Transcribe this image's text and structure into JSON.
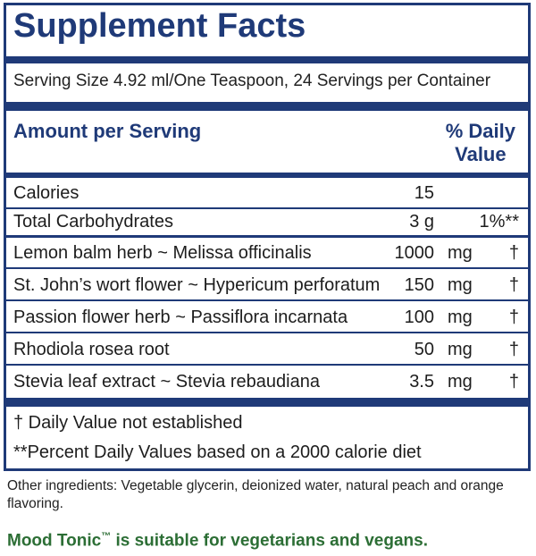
{
  "title": "Supplement Facts",
  "serving": "Serving Size 4.92 ml/One Teaspoon, 24 Servings per Container",
  "header": {
    "amount_per_serving": "Amount per Serving",
    "daily_value_line1": "% Daily",
    "daily_value_line2": "Value"
  },
  "rows": [
    {
      "name": "Calories",
      "amount": "15",
      "unit": "",
      "dv": ""
    },
    {
      "name": "Total Carbohydrates",
      "amount": "3 g",
      "unit": "",
      "dv": "1%**"
    },
    {
      "name": "Lemon balm herb ~ Melissa officinalis",
      "amount": "1000",
      "unit": "mg",
      "dv": "†"
    },
    {
      "name": "St. John’s wort flower ~ Hypericum perforatum",
      "amount": "150",
      "unit": "mg",
      "dv": "†"
    },
    {
      "name": "Passion flower herb ~ Passiflora incarnata",
      "amount": "100",
      "unit": "mg",
      "dv": "†"
    },
    {
      "name": "Rhodiola rosea root",
      "amount": "50",
      "unit": "mg",
      "dv": "†"
    },
    {
      "name": "Stevia leaf extract ~ Stevia rebaudiana",
      "amount": "3.5",
      "unit": "mg",
      "dv": "†"
    }
  ],
  "notes": {
    "dagger": "† Daily Value not established",
    "percent": "**Percent Daily Values based on a 2000 calorie diet"
  },
  "other_ingredients": "Other ingredients: Vegetable glycerin, deionized water, natural peach and orange flavoring.",
  "suitable": {
    "product": "Mood Tonic",
    "tm": "™",
    "text": " is suitable for vegetarians and vegans."
  },
  "colors": {
    "primary": "#1f3a78",
    "green": "#2c6e35"
  }
}
